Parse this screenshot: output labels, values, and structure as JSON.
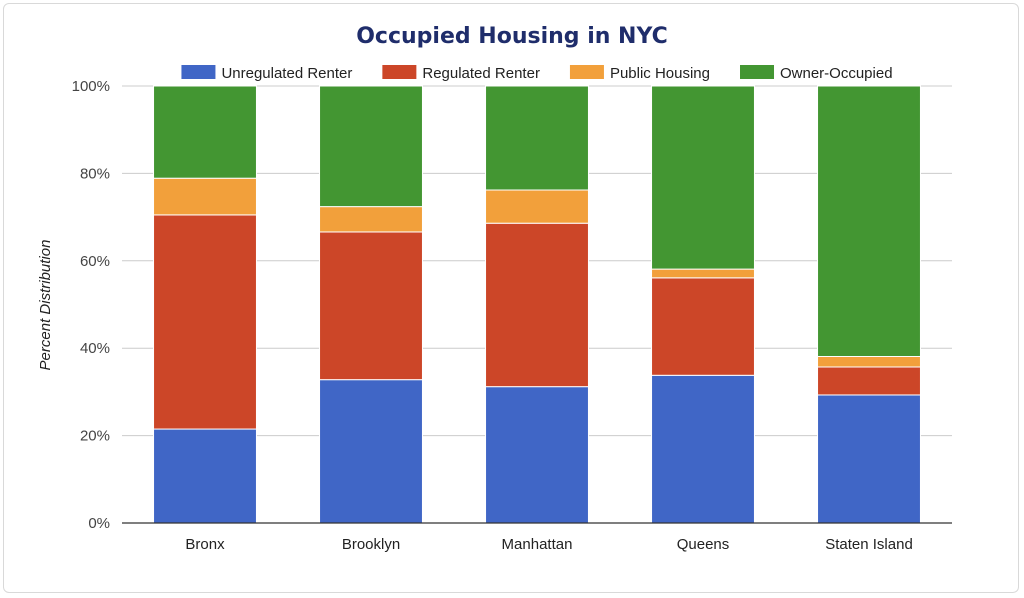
{
  "chart_data": {
    "type": "bar",
    "stacked": true,
    "title": "Occupied Housing in NYC",
    "xlabel": "",
    "ylabel": "Percent Distribution",
    "ylim": [
      0,
      100
    ],
    "yticks": [
      "0%",
      "20%",
      "40%",
      "60%",
      "80%",
      "100%"
    ],
    "ytick_values": [
      0,
      20,
      40,
      60,
      80,
      100
    ],
    "grid": true,
    "legend_position": "top",
    "categories": [
      "Bronx",
      "Brooklyn",
      "Manhattan",
      "Queens",
      "Staten Island"
    ],
    "series": [
      {
        "name": "Unregulated Renter",
        "color": "#4066c6",
        "values": [
          21.5,
          32.8,
          31.2,
          33.8,
          29.3
        ]
      },
      {
        "name": "Regulated Renter",
        "color": "#cc4628",
        "values": [
          49.0,
          33.8,
          37.4,
          22.3,
          6.4
        ]
      },
      {
        "name": "Public Housing",
        "color": "#f2a03b",
        "values": [
          8.4,
          5.8,
          7.6,
          2.0,
          2.4
        ]
      },
      {
        "name": "Owner-Occupied",
        "color": "#439632",
        "values": [
          21.1,
          27.6,
          23.8,
          41.9,
          61.9
        ]
      }
    ]
  }
}
